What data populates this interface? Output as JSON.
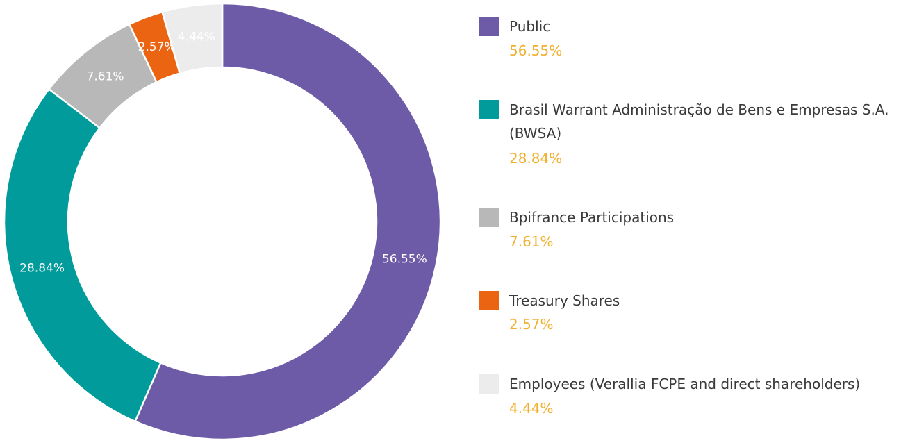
{
  "chart_data": {
    "type": "pie",
    "donut": true,
    "legend_position": "right",
    "slices": [
      {
        "label": "Public",
        "value": 56.55,
        "value_label": "56.55%",
        "color": "#6d5ba8"
      },
      {
        "label": "Brasil Warrant Administração de Bens e Empresas S.A. (BWSA)",
        "value": 28.84,
        "value_label": "28.84%",
        "color": "#009b9a"
      },
      {
        "label": "Bpifrance Participations",
        "value": 7.61,
        "value_label": "7.61%",
        "color": "#b8b8b8"
      },
      {
        "label": "Treasury Shares",
        "value": 2.57,
        "value_label": "2.57%",
        "color": "#ea6412"
      },
      {
        "label": "Employees (Verallia FCPE and direct shareholders)",
        "value": 4.44,
        "value_label": "4.44%",
        "color": "#ececec"
      }
    ]
  }
}
